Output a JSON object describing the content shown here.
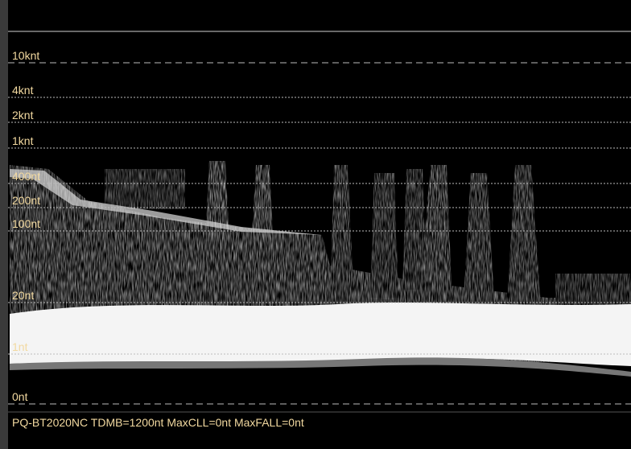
{
  "scale": {
    "labels": [
      "10knt",
      "4knt",
      "2knt",
      "1knt",
      "400nt",
      "200nt",
      "100nt",
      "20nt",
      "1nt",
      "0nt"
    ]
  },
  "status_bar": {
    "text": "PQ-BT2020NC TDMB=1200nt MaxCLL=0nt MaxFALL=0nt"
  }
}
